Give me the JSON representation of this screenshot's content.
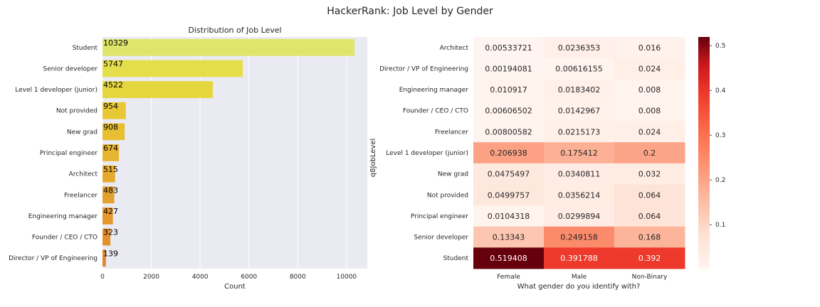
{
  "figure": {
    "title": "HackerRank: Job Level by Gender"
  },
  "chart_data": [
    {
      "type": "bar",
      "orientation": "horizontal",
      "title": "Distribution of Job Level",
      "xlabel": "Count",
      "ylabel": "",
      "xlim": [
        0,
        10850
      ],
      "xticks": [
        0,
        2000,
        4000,
        6000,
        8000,
        10000
      ],
      "grid": true,
      "categories": [
        "Student",
        "Senior developer",
        "Level 1 developer (junior)",
        "Not provided",
        "New grad",
        "Principal engineer",
        "Architect",
        "Freelancer",
        "Engineering manager",
        "Founder / CEO / CTO",
        "Director / VP of Engineering"
      ],
      "values": [
        10329,
        5747,
        4522,
        954,
        908,
        674,
        515,
        483,
        427,
        323,
        139
      ],
      "colors": [
        "#dfe56b",
        "#e4de4b",
        "#e6d63d",
        "#e8c935",
        "#e8bf33",
        "#e8b532",
        "#e6aa30",
        "#e5a12f",
        "#e4982e",
        "#e3902d",
        "#e1852c"
      ]
    },
    {
      "type": "heatmap",
      "xlabel": "What gender do you identify with?",
      "ylabel": "q8JobLevel",
      "columns": [
        "Female",
        "Male",
        "Non-Binary"
      ],
      "rows": [
        "Architect",
        "Director / VP of Engineering",
        "Engineering manager",
        "Founder / CEO / CTO",
        "Freelancer",
        "Level 1 developer (junior)",
        "New grad",
        "Not provided",
        "Principal engineer",
        "Senior developer",
        "Student"
      ],
      "values": [
        [
          "0.00533721",
          "0.0236353",
          "0.016"
        ],
        [
          "0.00194081",
          "0.00616155",
          "0.024"
        ],
        [
          "0.010917",
          "0.0183402",
          "0.008"
        ],
        [
          "0.00606502",
          "0.0142967",
          "0.008"
        ],
        [
          "0.00800582",
          "0.0215173",
          "0.024"
        ],
        [
          "0.206938",
          "0.175412",
          "0.2"
        ],
        [
          "0.0475497",
          "0.0340811",
          "0.032"
        ],
        [
          "0.0499757",
          "0.0356214",
          "0.064"
        ],
        [
          "0.0104318",
          "0.0299894",
          "0.064"
        ],
        [
          "0.13343",
          "0.249158",
          "0.168"
        ],
        [
          "0.519408",
          "0.391788",
          "0.392"
        ]
      ],
      "colormap": "Reds",
      "colorbar": {
        "range": [
          0.0019,
          0.5194
        ],
        "ticks": [
          "0.1",
          "0.2",
          "0.3",
          "0.4",
          "0.5"
        ]
      }
    }
  ]
}
